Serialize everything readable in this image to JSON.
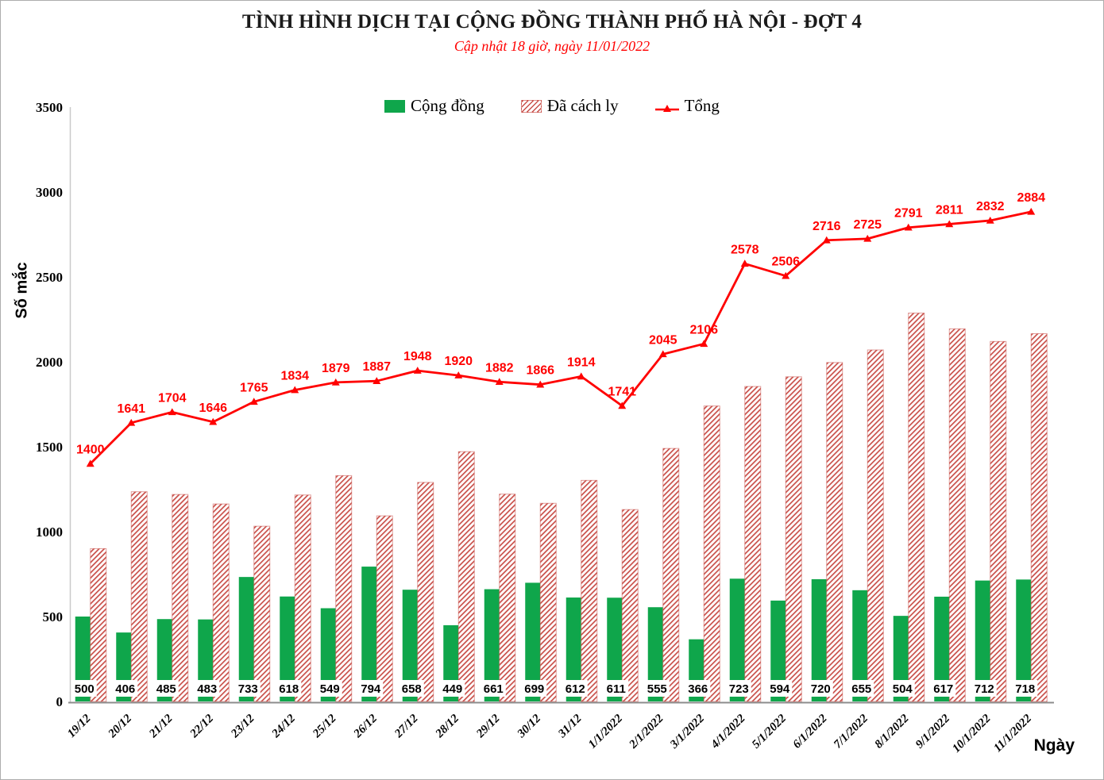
{
  "colors": {
    "subtitle_red": "#FF0000",
    "frame_border": "#ADADAD",
    "x_axis_line": "#8C8C8C",
    "y_axis_line": "#C9C9C9",
    "value_box_bg": "#FFFFFF"
  },
  "chart_data": {
    "type": "bar",
    "subtype": "combo-bar-line",
    "title": "TÌNH HÌNH DỊCH TẠI CỘNG ĐỒNG THÀNH PHỐ HÀ NỘI - ĐỢT 4",
    "subtitle": "Cập nhật 18 giờ, ngày 11/01/2022",
    "xlabel": "Ngày",
    "ylabel": "Số mắc",
    "ylim": [
      0,
      3500
    ],
    "ytick_step": 500,
    "ytick_labels": [
      "0",
      "500",
      "1000",
      "1500",
      "2000",
      "2500",
      "3000",
      "3500"
    ],
    "grid": false,
    "legend_position": "top-center",
    "categories": [
      "19/12",
      "20/12",
      "21/12",
      "22/12",
      "23/12",
      "24/12",
      "25/12",
      "26/12",
      "27/12",
      "28/12",
      "29/12",
      "30/12",
      "31/12",
      "1/1/2022",
      "2/1/2022",
      "3/1/2022",
      "4/1/2022",
      "5/1/2022",
      "6/1/2022",
      "7/1/2022",
      "8/1/2022",
      "9/1/2022",
      "10/1/2022",
      "11/1/2022"
    ],
    "series": [
      {
        "name": "Cộng đồng",
        "type": "bar",
        "pattern": "solid",
        "color": "#0FA64B",
        "data_labels": "shown-at-bar-base-in-white-box",
        "values": [
          500,
          406,
          485,
          483,
          733,
          618,
          549,
          794,
          658,
          449,
          661,
          699,
          612,
          611,
          555,
          366,
          723,
          594,
          720,
          655,
          504,
          617,
          712,
          718
        ]
      },
      {
        "name": "Đã cách ly",
        "type": "bar",
        "pattern": "diagonal-hatch",
        "color": "#C9504A",
        "data_labels": "none",
        "values": [
          900,
          1235,
          1219,
          1163,
          1032,
          1216,
          1330,
          1093,
          1290,
          1471,
          1221,
          1167,
          1302,
          1130,
          1490,
          1740,
          1855,
          1912,
          1996,
          2070,
          2287,
          2194,
          2120,
          2166
        ]
      },
      {
        "name": "Tổng",
        "type": "line",
        "marker": "triangle-up",
        "color": "#FF0000",
        "data_labels": "shown-above-points",
        "values": [
          1400,
          1641,
          1704,
          1646,
          1765,
          1834,
          1879,
          1887,
          1948,
          1920,
          1882,
          1866,
          1914,
          1741,
          2045,
          2106,
          2578,
          2506,
          2716,
          2725,
          2791,
          2811,
          2832,
          2884
        ]
      }
    ]
  }
}
